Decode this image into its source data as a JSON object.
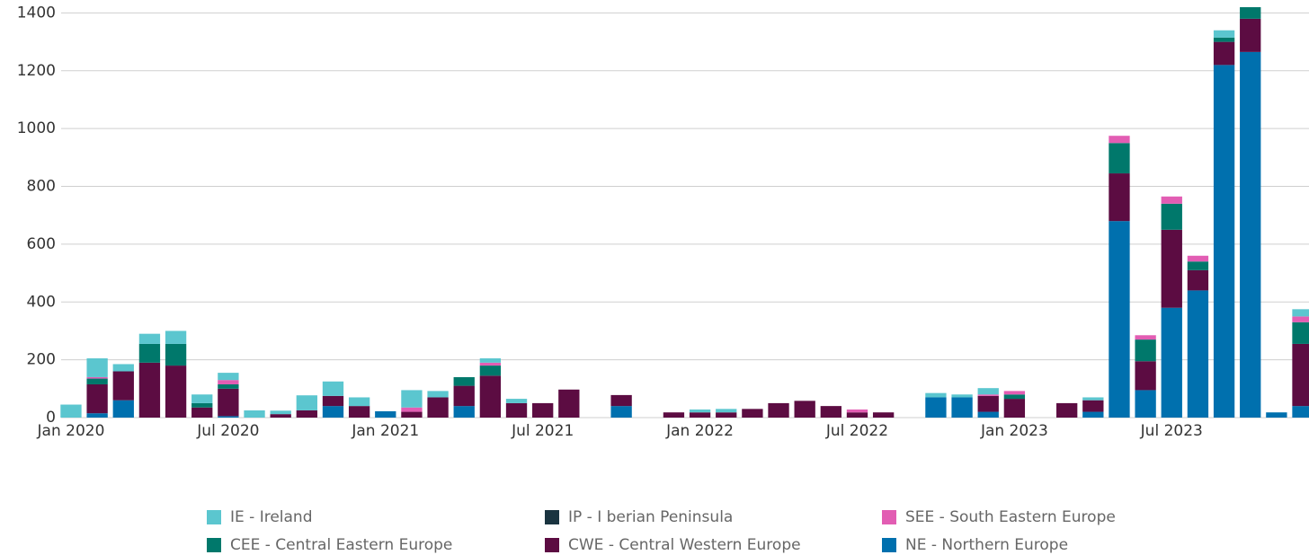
{
  "chart_data": {
    "type": "bar",
    "stacked": true,
    "categories": [
      "Jan 2020",
      null,
      null,
      null,
      null,
      null,
      "Jul 2020",
      null,
      null,
      null,
      null,
      null,
      "Jan 2021",
      null,
      null,
      null,
      null,
      null,
      "Jul 2021",
      null,
      null,
      null,
      null,
      null,
      "Jan 2022",
      null,
      null,
      null,
      null,
      null,
      "Jul 2022",
      null,
      null,
      null,
      null,
      null,
      "Jan 2023",
      null,
      null,
      null,
      null,
      null,
      "Jul 2023",
      null,
      null,
      null,
      null,
      null
    ],
    "series": [
      {
        "name": "IE - Ireland",
        "color": "#5bc6cf",
        "values": [
          45,
          65,
          25,
          35,
          45,
          30,
          25,
          25,
          12,
          52,
          50,
          30,
          0,
          60,
          22,
          0,
          15,
          15,
          0,
          0,
          0,
          0,
          0,
          0,
          10,
          12,
          0,
          0,
          0,
          0,
          0,
          0,
          0,
          15,
          10,
          22,
          0,
          0,
          0,
          10,
          0,
          0,
          0,
          0,
          25,
          0,
          0,
          25
        ]
      },
      {
        "name": "IP - I berian Peninsula",
        "color": "#1a3440",
        "values": [
          0,
          0,
          0,
          0,
          0,
          0,
          0,
          0,
          0,
          0,
          0,
          0,
          0,
          0,
          0,
          0,
          0,
          0,
          0,
          0,
          0,
          0,
          0,
          0,
          0,
          0,
          0,
          0,
          0,
          0,
          0,
          0,
          0,
          0,
          0,
          0,
          0,
          0,
          0,
          0,
          0,
          0,
          0,
          0,
          0,
          0,
          0,
          0
        ]
      },
      {
        "name": "SEE - South Eastern Europe",
        "color": "#e25db3",
        "values": [
          0,
          5,
          0,
          0,
          0,
          0,
          15,
          0,
          0,
          0,
          0,
          0,
          0,
          15,
          0,
          0,
          10,
          0,
          0,
          0,
          0,
          0,
          0,
          0,
          0,
          0,
          0,
          0,
          0,
          0,
          10,
          0,
          0,
          0,
          0,
          5,
          12,
          0,
          0,
          0,
          25,
          15,
          25,
          20,
          0,
          0,
          0,
          20
        ]
      },
      {
        "name": "CEE - Central Eastern Europe",
        "color": "#00786b",
        "values": [
          0,
          20,
          0,
          65,
          75,
          15,
          15,
          0,
          0,
          0,
          0,
          0,
          0,
          0,
          0,
          30,
          35,
          0,
          0,
          0,
          0,
          0,
          0,
          0,
          0,
          0,
          0,
          0,
          0,
          0,
          0,
          0,
          0,
          0,
          0,
          0,
          15,
          0,
          0,
          0,
          105,
          75,
          90,
          30,
          15,
          40,
          0,
          75
        ]
      },
      {
        "name": "CWE - Central Western Europe",
        "color": "#5c0c42",
        "values": [
          0,
          100,
          100,
          190,
          180,
          35,
          95,
          0,
          12,
          25,
          35,
          40,
          0,
          20,
          70,
          70,
          145,
          50,
          50,
          97,
          0,
          38,
          0,
          18,
          18,
          18,
          30,
          50,
          58,
          40,
          18,
          18,
          0,
          0,
          0,
          55,
          65,
          0,
          50,
          40,
          165,
          100,
          270,
          70,
          80,
          115,
          0,
          215
        ]
      },
      {
        "name": "NE - Northern Europe",
        "color": "#0070ae",
        "values": [
          0,
          15,
          60,
          0,
          0,
          0,
          5,
          0,
          0,
          0,
          40,
          0,
          22,
          0,
          0,
          40,
          0,
          0,
          0,
          0,
          0,
          40,
          0,
          0,
          0,
          0,
          0,
          0,
          0,
          0,
          0,
          0,
          0,
          70,
          70,
          20,
          0,
          0,
          0,
          20,
          680,
          95,
          380,
          440,
          1220,
          1265,
          18,
          40
        ]
      }
    ],
    "ylim": [
      0,
      1420
    ],
    "yticks": [
      0,
      200,
      400,
      600,
      800,
      1000,
      1200,
      1400
    ],
    "grid": true
  }
}
